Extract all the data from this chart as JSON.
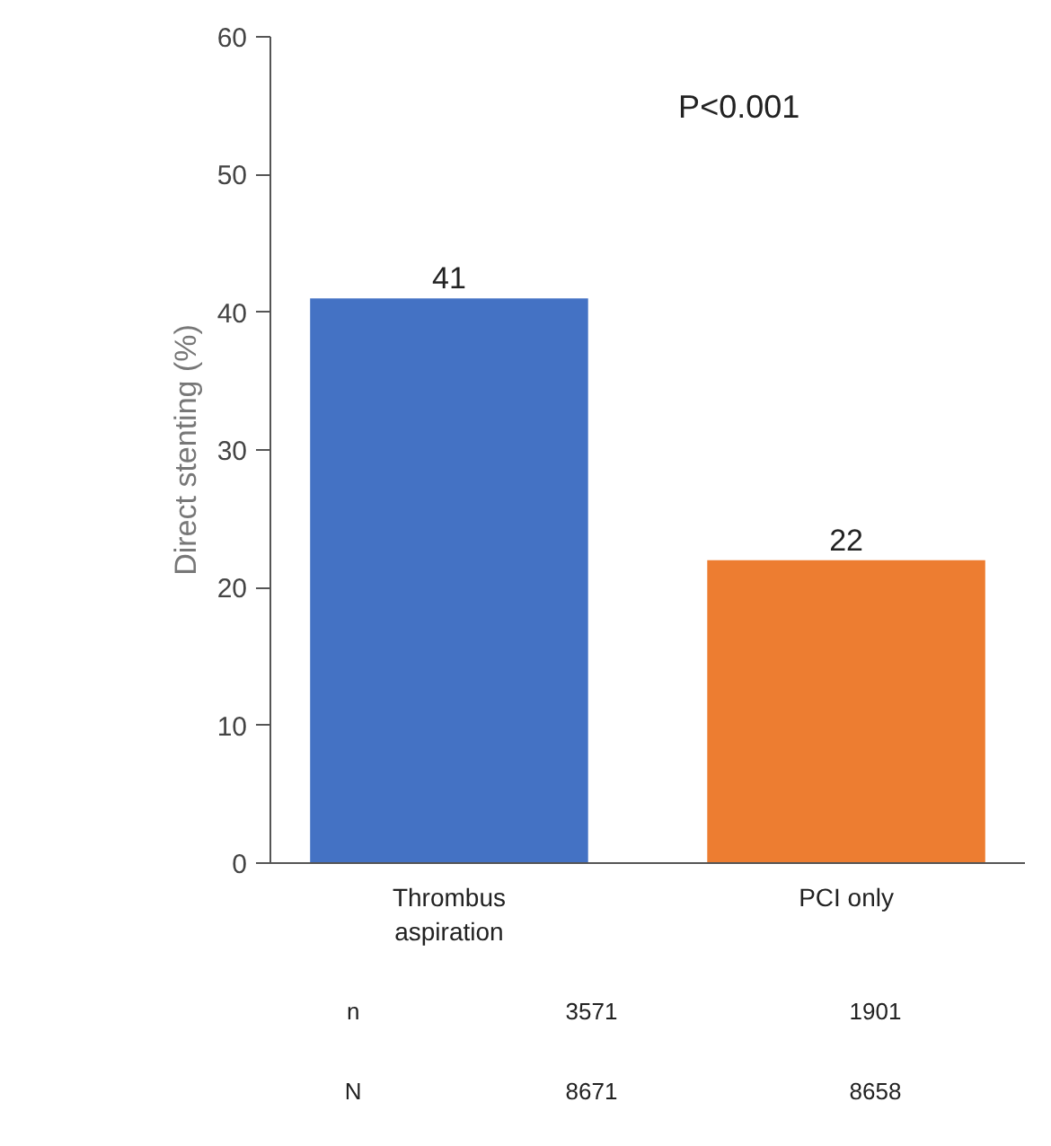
{
  "chart_data": {
    "type": "bar",
    "ylabel": "Direct stenting (%)",
    "categories": [
      "Thrombus\naspiration",
      "PCI only"
    ],
    "values": [
      41,
      22
    ],
    "colors": [
      "#4472c4",
      "#ed7d31"
    ],
    "ylim": [
      0,
      60
    ],
    "yticks": [
      0,
      10,
      20,
      30,
      40,
      50,
      60
    ],
    "data_labels": true,
    "grid": false,
    "annotations": [
      "P<0.001",
      "n",
      "3571",
      "1901",
      "N",
      "8671",
      "8658"
    ]
  }
}
